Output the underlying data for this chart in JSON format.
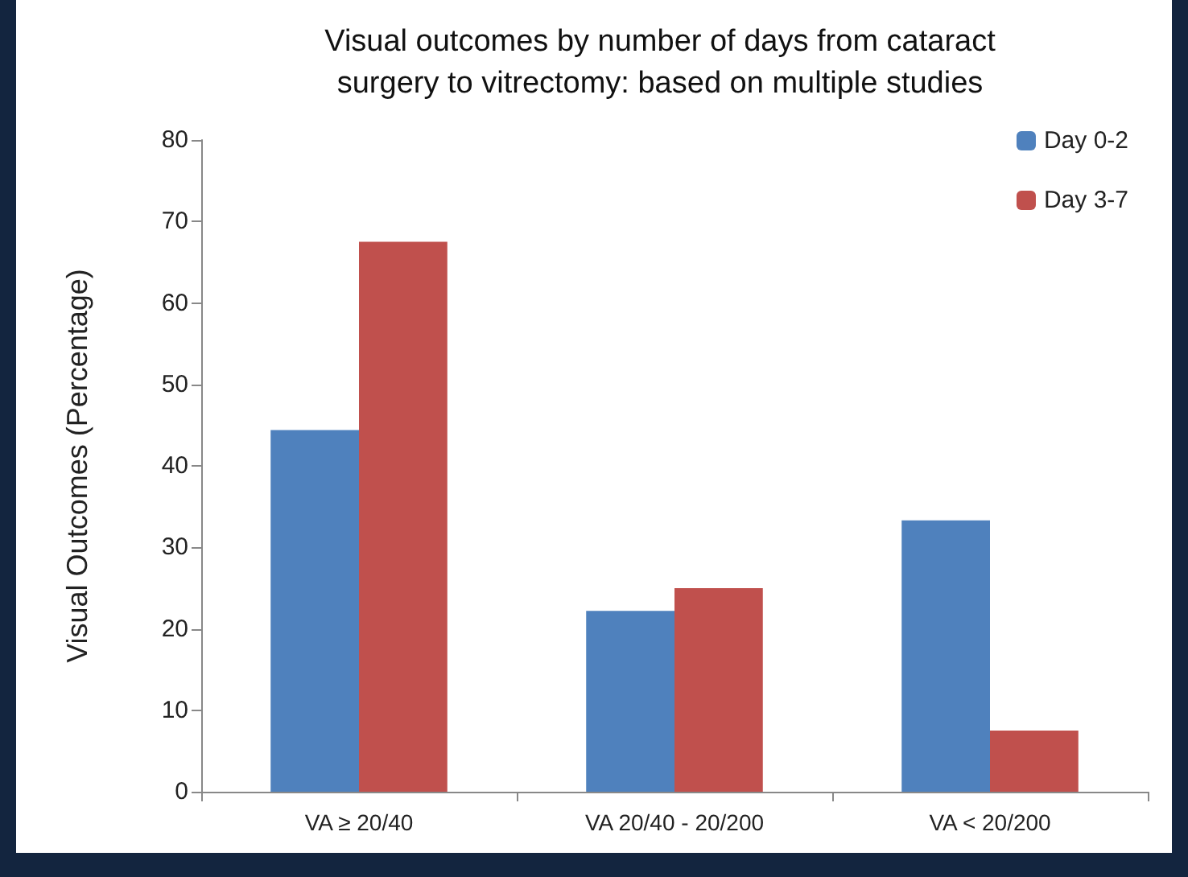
{
  "chart_data": {
    "type": "bar",
    "title": "Visual outcomes by number of days from cataract\nsurgery to vitrectomy: based on multiple studies",
    "ylabel": "Visual Outcomes (Percentage)",
    "categories": [
      "VA ≥ 20/40",
      "VA 20/40 - 20/200",
      "VA < 20/200"
    ],
    "series": [
      {
        "name": "Day 0-2",
        "color": "#4f81bd",
        "values": [
          44.4,
          22.2,
          33.3
        ]
      },
      {
        "name": "Day 3-7",
        "color": "#c0504d",
        "values": [
          67.5,
          25,
          7.5
        ]
      }
    ],
    "ylim": [
      0,
      80
    ],
    "yticks": [
      0,
      10,
      20,
      30,
      40,
      50,
      60,
      70,
      80
    ],
    "grid": false,
    "legend": "top right"
  }
}
